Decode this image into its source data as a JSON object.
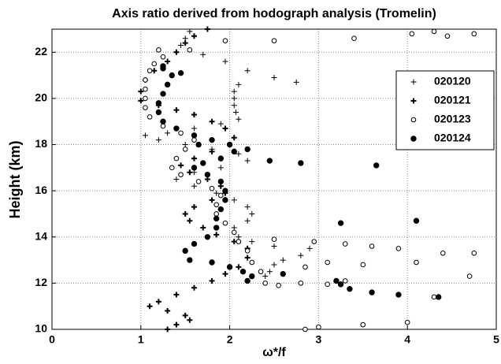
{
  "chart_data": {
    "type": "scatter",
    "title": "Axis ratio derived from hodograph analysis (Tromelin)",
    "xlabel": "ω*/f",
    "ylabel": "Height (km)",
    "xlim": [
      0,
      5
    ],
    "ylim": [
      10,
      23
    ],
    "xticks": [
      0,
      1,
      2,
      3,
      4,
      5
    ],
    "yticks": [
      10,
      12,
      14,
      16,
      18,
      20,
      22
    ],
    "grid": true,
    "legend": "upper right",
    "series": [
      {
        "name": "020120",
        "marker": "plus",
        "color": "#000000",
        "x": [
          1.55,
          1.5,
          1.45,
          1.7,
          1.95,
          2.2,
          2.5,
          2.75,
          2.1,
          2.05,
          2.05,
          2.05,
          2.07,
          2.1,
          1.9,
          1.6,
          1.3,
          1.05,
          1.2,
          1.5,
          1.8,
          2.1,
          2.2,
          1.9,
          1.6,
          1.4,
          1.6,
          1.85,
          2.05,
          2.2,
          2.25,
          2.2,
          2.05,
          2.1,
          2.25,
          2.5,
          2.9,
          2.8,
          2.6,
          2.5,
          2.45,
          2.4
        ],
        "y": [
          22.9,
          22.6,
          22.3,
          21.9,
          21.6,
          21.2,
          20.9,
          20.7,
          20.6,
          20.3,
          20.0,
          19.7,
          19.4,
          19.1,
          18.9,
          18.7,
          18.5,
          18.4,
          18.2,
          18.0,
          17.8,
          17.6,
          17.3,
          17.0,
          16.8,
          16.5,
          16.2,
          15.9,
          15.6,
          15.3,
          15.0,
          14.7,
          14.4,
          14.0,
          13.8,
          13.6,
          13.5,
          13.2,
          13.0,
          12.8,
          12.5,
          12.3
        ]
      },
      {
        "name": "020121",
        "marker": "plus-bold",
        "color": "#000000",
        "x": [
          1.75,
          1.6,
          1.5,
          1.4,
          1.3,
          1.15,
          1.05,
          1.0,
          1.0,
          1.2,
          1.4,
          1.6,
          1.8,
          1.95,
          2.05,
          2.0,
          1.8,
          1.6,
          1.45,
          1.55,
          1.75,
          1.9,
          1.95,
          1.8,
          1.6,
          1.5,
          1.55,
          1.7,
          1.85,
          2.05,
          2.2,
          2.2,
          2.1,
          1.95,
          1.8,
          1.6,
          1.4,
          1.2,
          1.1,
          1.3,
          1.5,
          1.55,
          1.4,
          1.3
        ],
        "y": [
          23.0,
          22.7,
          22.4,
          22.0,
          21.6,
          21.2,
          20.8,
          20.3,
          19.9,
          19.7,
          19.5,
          19.3,
          19.0,
          18.7,
          18.3,
          18.0,
          17.7,
          17.4,
          17.1,
          16.8,
          16.5,
          16.2,
          15.9,
          15.6,
          15.3,
          15.0,
          14.7,
          14.4,
          14.1,
          13.8,
          13.5,
          13.1,
          12.7,
          12.4,
          12.1,
          11.8,
          11.5,
          11.2,
          11.0,
          10.8,
          10.6,
          10.4,
          10.2,
          10.0
        ]
      },
      {
        "name": "020123",
        "marker": "circle-open",
        "color": "#000000",
        "x": [
          1.2,
          1.25,
          1.15,
          1.1,
          1.05,
          1.05,
          1.05,
          1.05,
          1.1,
          1.25,
          1.45,
          1.6,
          1.5,
          1.4,
          1.35,
          1.45,
          1.65,
          1.8,
          1.9,
          1.85,
          1.85,
          1.95,
          2.05,
          2.1,
          2.2,
          2.25,
          2.35,
          2.4,
          2.55,
          2.8,
          3.1,
          3.3,
          2.85,
          3.1,
          3.5,
          2.95,
          3.3,
          3.6,
          3.9,
          4.1,
          4.4,
          4.75,
          4.7,
          4.3,
          3.4,
          2.5,
          4.05,
          4.3,
          4.45,
          4.75,
          1.95,
          2.5,
          2.85,
          3.0,
          3.5,
          4.0,
          1.55
        ],
        "y": [
          22.1,
          21.8,
          21.5,
          21.2,
          20.8,
          20.4,
          20.0,
          19.6,
          19.2,
          18.8,
          18.5,
          18.2,
          17.8,
          17.4,
          17.0,
          16.7,
          16.4,
          16.1,
          15.8,
          15.4,
          15.0,
          14.6,
          14.2,
          13.8,
          13.4,
          12.9,
          12.5,
          12.0,
          11.9,
          12.0,
          11.95,
          12.1,
          12.7,
          12.9,
          12.8,
          13.8,
          13.7,
          13.6,
          13.5,
          12.9,
          13.3,
          13.3,
          12.3,
          11.4,
          22.6,
          22.5,
          22.8,
          22.9,
          22.7,
          22.8,
          22.5,
          13.9,
          10.0,
          10.1,
          10.2,
          10.3,
          22.1
        ]
      },
      {
        "name": "020124",
        "marker": "circle-filled",
        "color": "#000000",
        "x": [
          1.25,
          1.35,
          1.3,
          1.25,
          1.2,
          1.2,
          1.25,
          1.4,
          1.6,
          1.8,
          2.0,
          2.05,
          1.9,
          1.7,
          1.6,
          1.75,
          1.9,
          1.95,
          1.95,
          1.9,
          1.85,
          1.85,
          1.75,
          1.6,
          1.5,
          1.55,
          1.8,
          2.0,
          2.15,
          2.25,
          2.2,
          1.25,
          1.65,
          2.2,
          2.45,
          2.8,
          3.65,
          3.25,
          4.1,
          2.6,
          3.2,
          3.25,
          3.35,
          3.6,
          3.9,
          4.35,
          1.45
        ],
        "y": [
          21.4,
          21.0,
          20.6,
          20.2,
          19.8,
          19.4,
          19.0,
          18.7,
          18.4,
          18.2,
          18.0,
          17.7,
          17.4,
          17.2,
          17.0,
          16.7,
          16.4,
          16.0,
          15.6,
          15.2,
          14.8,
          14.4,
          14.0,
          13.7,
          13.4,
          13.0,
          12.9,
          12.7,
          12.5,
          12.3,
          12.1,
          21.3,
          18.0,
          17.8,
          17.3,
          17.2,
          17.1,
          14.6,
          14.7,
          12.4,
          12.1,
          11.95,
          11.75,
          11.6,
          11.5,
          11.4,
          21.1
        ]
      }
    ]
  }
}
